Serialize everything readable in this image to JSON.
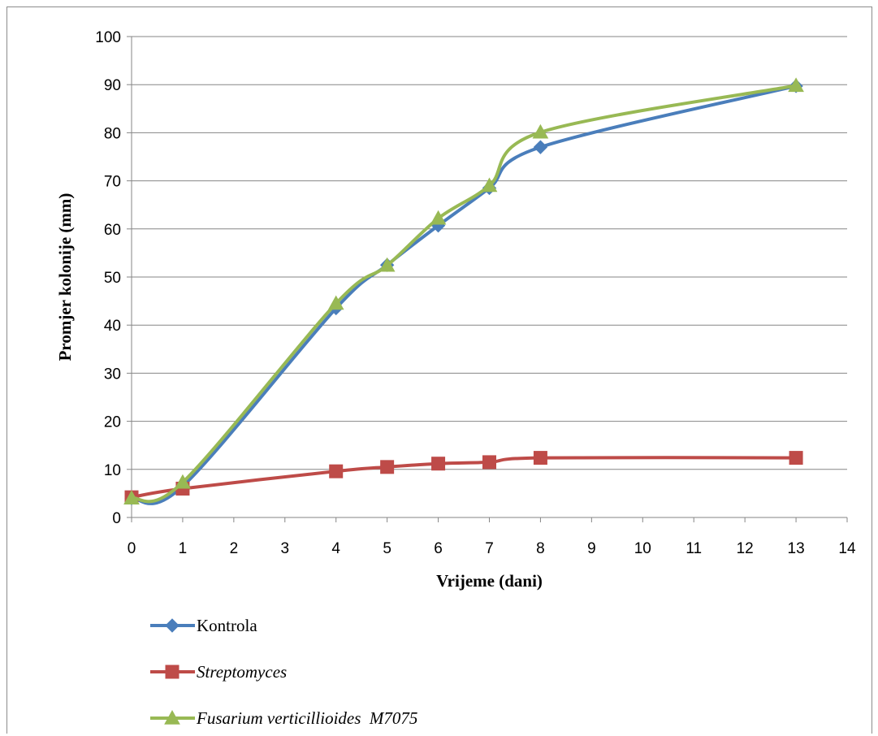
{
  "chart_data": {
    "type": "line",
    "title": "",
    "xlabel": "Vrijeme (dani)",
    "ylabel": "Promjer kolonije (mm)",
    "xlim": [
      0,
      14
    ],
    "ylim": [
      0,
      100
    ],
    "x_ticks": [
      "0",
      "1",
      "2",
      "3",
      "4",
      "5",
      "6",
      "7",
      "8",
      "9",
      "10",
      "11",
      "12",
      "13",
      "14"
    ],
    "y_ticks": [
      "0",
      "10",
      "20",
      "30",
      "40",
      "50",
      "60",
      "70",
      "80",
      "90",
      "100"
    ],
    "grid": "horizontal",
    "legend_position": "bottom",
    "series": [
      {
        "name": "Kontrola",
        "color": "#4a7ebb",
        "marker": "diamond",
        "italic": false,
        "x": [
          0,
          1,
          4,
          5,
          6,
          7,
          8,
          13
        ],
        "values": [
          4,
          6.5,
          43.5,
          52.5,
          60.7,
          68.5,
          77,
          89.7
        ]
      },
      {
        "name": "Streptomyces",
        "color": "#be4b48",
        "marker": "square",
        "italic": true,
        "x": [
          0,
          1,
          4,
          5,
          6,
          7,
          8,
          13
        ],
        "values": [
          4.2,
          6,
          9.6,
          10.5,
          11.2,
          11.5,
          12.4,
          12.4
        ]
      },
      {
        "name": "Fusarium verticillioides  M7075",
        "color": "#98b954",
        "marker": "triangle",
        "italic": true,
        "x": [
          0,
          1,
          4,
          5,
          6,
          7,
          8,
          13
        ],
        "values": [
          4,
          7.3,
          44.5,
          52.4,
          62.2,
          69,
          80.1,
          89.8
        ]
      }
    ]
  }
}
